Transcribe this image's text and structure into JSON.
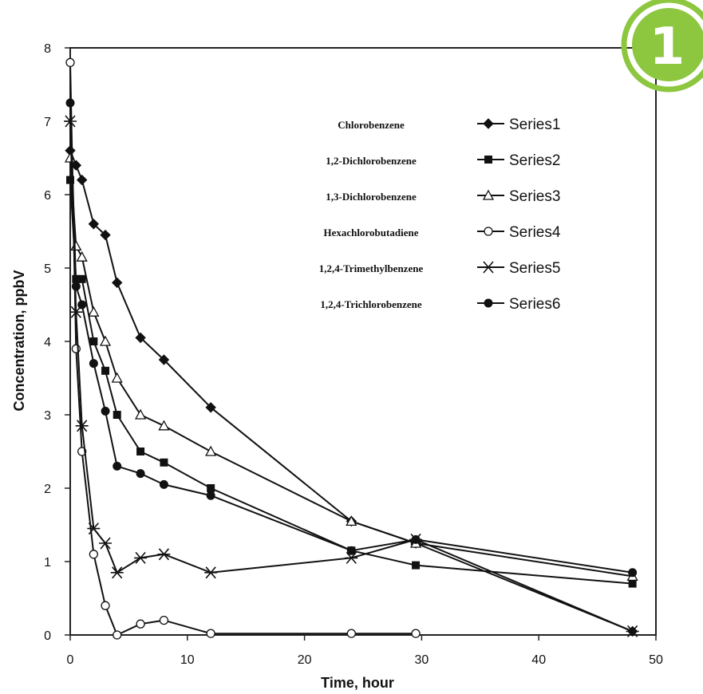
{
  "badge": {
    "text": "1",
    "color": "#8dc63f"
  },
  "chart_data": {
    "type": "line",
    "xlabel": "Time, hour",
    "ylabel": "Concentration, ppbV",
    "xlim": [
      0,
      50
    ],
    "ylim": [
      0,
      8
    ],
    "xticks": [
      0,
      10,
      20,
      30,
      40,
      50
    ],
    "yticks": [
      0,
      1,
      2,
      3,
      4,
      5,
      6,
      7,
      8
    ],
    "grid": false,
    "legend_position": "top-right",
    "series": [
      {
        "name": "Series1",
        "compound": "Chlorobenzene",
        "marker": "diamond-filled",
        "x": [
          0,
          0.5,
          1,
          2,
          3,
          4,
          6,
          8,
          12,
          24,
          29.5,
          48
        ],
        "y": [
          6.6,
          6.4,
          6.2,
          5.6,
          5.45,
          4.8,
          4.05,
          3.75,
          3.1,
          1.55,
          1.25,
          0.05
        ]
      },
      {
        "name": "Series2",
        "compound": "1,2-Dichlorobenzene",
        "marker": "square-filled",
        "x": [
          0,
          0.5,
          1,
          2,
          3,
          4,
          6,
          8,
          12,
          24,
          29.5,
          48
        ],
        "y": [
          6.2,
          4.85,
          4.85,
          4.0,
          3.6,
          3.0,
          2.5,
          2.35,
          2.0,
          1.15,
          0.95,
          0.7
        ]
      },
      {
        "name": "Series3",
        "compound": "1,3-Dichlorobenzene",
        "marker": "triangle-open",
        "x": [
          0,
          0.5,
          1,
          2,
          3,
          4,
          6,
          8,
          12,
          24,
          29.5,
          48
        ],
        "y": [
          6.5,
          5.3,
          5.15,
          4.4,
          4.0,
          3.5,
          3.0,
          2.85,
          2.5,
          1.55,
          1.25,
          0.8
        ]
      },
      {
        "name": "Series4",
        "compound": "Hexachlorobutadiene",
        "marker": "circle-open",
        "x": [
          0,
          0.5,
          1,
          2,
          3,
          4,
          6,
          8,
          12,
          24,
          29.5
        ],
        "y": [
          7.8,
          3.9,
          2.5,
          1.1,
          0.4,
          0.0,
          0.15,
          0.2,
          0.02,
          0.02,
          0.02
        ]
      },
      {
        "name": "Series5",
        "compound": "1,2,4-Trimethylbenzene",
        "marker": "star",
        "x": [
          0,
          0.5,
          1,
          2,
          3,
          4,
          6,
          8,
          12,
          24,
          29.5,
          48
        ],
        "y": [
          7.0,
          4.4,
          2.85,
          1.45,
          1.25,
          0.85,
          1.05,
          1.1,
          0.85,
          1.05,
          1.3,
          0.05
        ]
      },
      {
        "name": "Series6",
        "compound": "1,2,4-Trichlorobenzene",
        "marker": "circle-filled",
        "x": [
          0,
          0.5,
          1,
          2,
          3,
          4,
          6,
          8,
          12,
          24,
          29.5,
          48
        ],
        "y": [
          7.25,
          4.75,
          4.5,
          3.7,
          3.05,
          2.3,
          2.2,
          2.05,
          1.9,
          1.15,
          1.3,
          0.85
        ]
      }
    ]
  }
}
